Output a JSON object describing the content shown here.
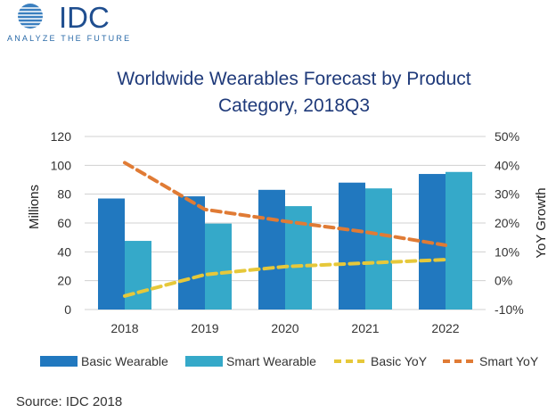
{
  "logo": {
    "name": "IDC",
    "tagline": "ANALYZE THE FUTURE"
  },
  "source": "Source: IDC 2018",
  "colors": {
    "basic": "#2178bf",
    "smart": "#35a9c9",
    "basic_yoy": "#e6c83a",
    "smart_yoy": "#e07b35",
    "title": "#1f3a7a"
  },
  "chart_data": {
    "type": "bar",
    "title_lines": [
      "Worldwide Wearables Forecast by Product",
      "Category, 2018Q3"
    ],
    "categories": [
      "2018",
      "2019",
      "2020",
      "2021",
      "2022"
    ],
    "ylabel": "Millions",
    "y2label": "YoY Growth",
    "ylim": [
      0,
      120
    ],
    "yticks": [
      "0",
      "20",
      "40",
      "60",
      "80",
      "100",
      "120"
    ],
    "y2lim": [
      -10,
      50
    ],
    "y2ticks": [
      "-10%",
      "0%",
      "10%",
      "20%",
      "30%",
      "40%",
      "50%"
    ],
    "series": [
      {
        "name": "Basic Wearable",
        "kind": "bar",
        "axis": "left",
        "values": [
          77,
          78.5,
          83,
          88,
          94
        ]
      },
      {
        "name": "Smart Wearable",
        "kind": "bar",
        "axis": "left",
        "values": [
          47.6,
          59.6,
          71.7,
          84,
          95.4
        ]
      },
      {
        "name": "Basic YoY",
        "kind": "line-dashed",
        "axis": "right",
        "values": [
          -5.3,
          2.1,
          4.9,
          6.1,
          7.3
        ]
      },
      {
        "name": "Smart YoY",
        "kind": "line-dashed",
        "axis": "right",
        "values": [
          40.9,
          24.7,
          20.6,
          16.9,
          12.3
        ]
      }
    ],
    "grid": true,
    "legend": "bottom"
  }
}
